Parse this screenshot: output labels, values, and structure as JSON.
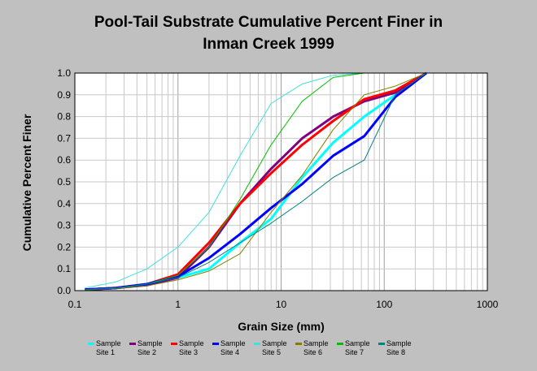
{
  "chart_data": {
    "type": "line",
    "title_lines": [
      "Pool-Tail Substrate Cumulative Percent Finer in",
      "Inman Creek 1999"
    ],
    "xlabel": "Grain Size (mm)",
    "ylabel": "Cumulative Percent Finer",
    "x_scale": "log",
    "xlim": [
      0.1,
      1000
    ],
    "ylim": [
      0,
      1.0
    ],
    "x_ticks": [
      "0.1",
      "1",
      "10",
      "100",
      "1000"
    ],
    "y_ticks": [
      "0.0",
      "0.1",
      "0.2",
      "0.3",
      "0.4",
      "0.5",
      "0.6",
      "0.7",
      "0.8",
      "0.9",
      "1.0"
    ],
    "grid": true,
    "legend_position": "bottom",
    "series": [
      {
        "label_lines": [
          "Sample",
          "Site 1"
        ],
        "color": "#00ffff",
        "width": 3,
        "points": [
          [
            0.125,
            0.005
          ],
          [
            0.25,
            0.012
          ],
          [
            0.5,
            0.03
          ],
          [
            1,
            0.06
          ],
          [
            2,
            0.1
          ],
          [
            4,
            0.22
          ],
          [
            8,
            0.33
          ],
          [
            16,
            0.52
          ],
          [
            32,
            0.68
          ],
          [
            64,
            0.8
          ],
          [
            128,
            0.9
          ],
          [
            256,
            1.0
          ]
        ]
      },
      {
        "label_lines": [
          "Sample",
          "Site 2"
        ],
        "color": "#800080",
        "width": 3,
        "points": [
          [
            0.125,
            0.005
          ],
          [
            0.25,
            0.012
          ],
          [
            0.5,
            0.025
          ],
          [
            1,
            0.06
          ],
          [
            2,
            0.2
          ],
          [
            4,
            0.4
          ],
          [
            8,
            0.56
          ],
          [
            16,
            0.7
          ],
          [
            32,
            0.8
          ],
          [
            64,
            0.87
          ],
          [
            128,
            0.91
          ],
          [
            256,
            1.0
          ]
        ]
      },
      {
        "label_lines": [
          "Sample",
          "Site 3"
        ],
        "color": "#ff0000",
        "width": 3,
        "points": [
          [
            0.125,
            0.005
          ],
          [
            0.25,
            0.012
          ],
          [
            0.5,
            0.03
          ],
          [
            1,
            0.075
          ],
          [
            2,
            0.22
          ],
          [
            4,
            0.4
          ],
          [
            8,
            0.54
          ],
          [
            16,
            0.67
          ],
          [
            32,
            0.78
          ],
          [
            64,
            0.88
          ],
          [
            128,
            0.92
          ],
          [
            256,
            1.0
          ]
        ]
      },
      {
        "label_lines": [
          "Sample",
          "Site 4"
        ],
        "color": "#0000ff",
        "width": 3,
        "points": [
          [
            0.125,
            0.005
          ],
          [
            0.25,
            0.012
          ],
          [
            0.5,
            0.03
          ],
          [
            1,
            0.065
          ],
          [
            2,
            0.15
          ],
          [
            4,
            0.26
          ],
          [
            8,
            0.38
          ],
          [
            16,
            0.49
          ],
          [
            32,
            0.62
          ],
          [
            64,
            0.71
          ],
          [
            128,
            0.89
          ],
          [
            256,
            1.0
          ]
        ]
      },
      {
        "label_lines": [
          "Sample",
          "Site 5"
        ],
        "color": "#40e0e0",
        "width": 1,
        "points": [
          [
            0.125,
            0.012
          ],
          [
            0.25,
            0.04
          ],
          [
            0.5,
            0.1
          ],
          [
            1,
            0.2
          ],
          [
            2,
            0.36
          ],
          [
            4,
            0.62
          ],
          [
            8,
            0.86
          ],
          [
            16,
            0.95
          ],
          [
            32,
            0.99
          ],
          [
            64,
            1.0
          ],
          [
            128,
            1.0
          ],
          [
            256,
            1.0
          ]
        ]
      },
      {
        "label_lines": [
          "Sample",
          "Site 6"
        ],
        "color": "#808000",
        "width": 1,
        "points": [
          [
            0.125,
            0.003
          ],
          [
            0.25,
            0.01
          ],
          [
            0.5,
            0.022
          ],
          [
            1,
            0.05
          ],
          [
            2,
            0.09
          ],
          [
            4,
            0.17
          ],
          [
            8,
            0.36
          ],
          [
            16,
            0.53
          ],
          [
            32,
            0.74
          ],
          [
            64,
            0.9
          ],
          [
            128,
            0.94
          ],
          [
            256,
            1.0
          ]
        ]
      },
      {
        "label_lines": [
          "Sample",
          "Site 7"
        ],
        "color": "#00c000",
        "width": 1,
        "points": [
          [
            0.125,
            0.005
          ],
          [
            0.25,
            0.012
          ],
          [
            0.5,
            0.03
          ],
          [
            1,
            0.07
          ],
          [
            2,
            0.2
          ],
          [
            4,
            0.42
          ],
          [
            8,
            0.67
          ],
          [
            16,
            0.87
          ],
          [
            32,
            0.98
          ],
          [
            64,
            1.0
          ],
          [
            128,
            1.0
          ],
          [
            256,
            1.0
          ]
        ]
      },
      {
        "label_lines": [
          "Sample",
          "Site 8"
        ],
        "color": "#008080",
        "width": 1,
        "points": [
          [
            0.125,
            0.005
          ],
          [
            0.25,
            0.012
          ],
          [
            0.5,
            0.03
          ],
          [
            1,
            0.06
          ],
          [
            2,
            0.13
          ],
          [
            4,
            0.22
          ],
          [
            8,
            0.31
          ],
          [
            16,
            0.41
          ],
          [
            32,
            0.52
          ],
          [
            64,
            0.6
          ],
          [
            128,
            0.9
          ],
          [
            256,
            1.0
          ]
        ]
      }
    ]
  }
}
